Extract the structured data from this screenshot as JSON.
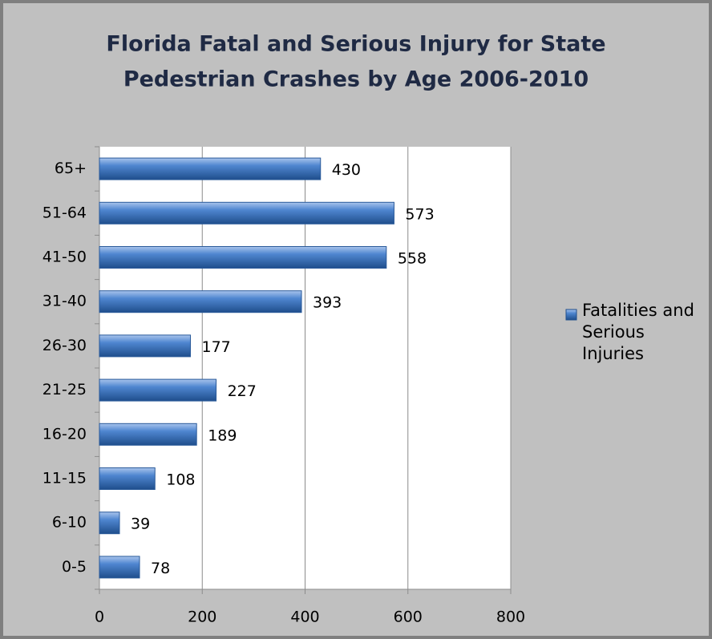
{
  "chart_data": {
    "type": "bar",
    "orientation": "horizontal",
    "title": [
      "Florida Fatal and Serious Injury for State",
      "Pedestrian Crashes by Age 2006-2010"
    ],
    "categories": [
      "0-5",
      "6-10",
      "11-15",
      "16-20",
      "21-25",
      "26-30",
      "31-40",
      "41-50",
      "51-64",
      "65+"
    ],
    "series": [
      {
        "name": "Fatalities and Serious Injuries",
        "color": "#3a6fb8",
        "values": [
          78,
          39,
          108,
          189,
          227,
          177,
          393,
          558,
          573,
          430
        ]
      }
    ],
    "xlim": [
      0,
      800
    ],
    "xticks": [
      0,
      200,
      400,
      600,
      800
    ],
    "grid": true,
    "legend": "right"
  }
}
